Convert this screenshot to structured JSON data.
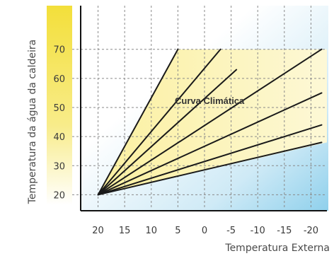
{
  "chart_data": {
    "type": "line",
    "title": "",
    "xlabel": "Temperatura Externa",
    "ylabel": "Temperatura da água da caldeira",
    "annotation": "Curva Climática",
    "x_ticks": [
      "20",
      "15",
      "10",
      "5",
      "0",
      "-5",
      "-10",
      "-15",
      "-20"
    ],
    "y_ticks": [
      "20",
      "30",
      "40",
      "50",
      "60",
      "70"
    ],
    "xlim": [
      23,
      -23
    ],
    "ylim": [
      15,
      85
    ],
    "grid": true,
    "legend": "none",
    "series": [
      {
        "x": [
          20,
          5
        ],
        "y": [
          20,
          70
        ]
      },
      {
        "x": [
          20,
          -3
        ],
        "y": [
          20,
          70
        ]
      },
      {
        "x": [
          20,
          -6
        ],
        "y": [
          20,
          63
        ]
      },
      {
        "x": [
          20,
          -22
        ],
        "y": [
          20,
          70
        ]
      },
      {
        "x": [
          20,
          -22
        ],
        "y": [
          20,
          55
        ]
      },
      {
        "x": [
          20,
          -22
        ],
        "y": [
          20,
          44
        ]
      },
      {
        "x": [
          20,
          -22
        ],
        "y": [
          20,
          38
        ]
      }
    ],
    "colors": {
      "line": "#1a1a1a",
      "grid": "#8a8a8a",
      "highlight_region": "#fbf3b4",
      "axis_bar": "#f5e24a",
      "background_top": "#8fd0ec"
    }
  }
}
